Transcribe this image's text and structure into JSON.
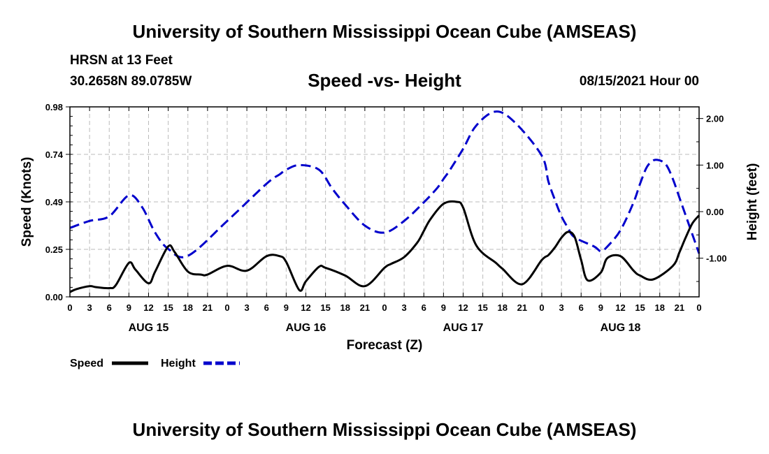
{
  "header": {
    "title": "University of Southern Mississippi Ocean Cube (AMSEAS)",
    "station": "HRSN at 13 Feet",
    "coords": "30.2658N  89.0785W",
    "chart_title": "Speed -vs- Height",
    "datetime": "08/15/2021 Hour 00"
  },
  "footer": {
    "title": "University of Southern Mississippi Ocean Cube (AMSEAS)"
  },
  "chart_data": {
    "type": "line",
    "title": "Speed -vs- Height",
    "xlabel": "Forecast (Z)",
    "ylabel": "Speed (Knots)",
    "y2label": "Height (feet)",
    "xlim": [
      0,
      96
    ],
    "ylim": [
      0,
      0.98
    ],
    "y2lim": [
      -1.83,
      2.25
    ],
    "yticks": [
      "0.00",
      "0.25",
      "0.49",
      "0.74",
      "0.98"
    ],
    "y2ticks": [
      "-1.00",
      "0.00",
      "1.00",
      "2.00"
    ],
    "xtick_labels": [
      "0",
      "3",
      "6",
      "9",
      "12",
      "15",
      "18",
      "21",
      "0",
      "3",
      "6",
      "9",
      "12",
      "15",
      "18",
      "21",
      "0",
      "3",
      "6",
      "9",
      "12",
      "15",
      "18",
      "21",
      "0",
      "3",
      "6",
      "9",
      "12",
      "15",
      "18",
      "21",
      "0"
    ],
    "day_labels": [
      {
        "label": "AUG 15",
        "hour": 12
      },
      {
        "label": "AUG 16",
        "hour": 36
      },
      {
        "label": "AUG 17",
        "hour": 60
      },
      {
        "label": "AUG 18",
        "hour": 84
      }
    ],
    "grid": true,
    "series": [
      {
        "name": "Speed",
        "axis": "left",
        "color": "#000000",
        "style": "solid",
        "x": [
          0,
          1,
          3,
          4,
          6,
          7,
          9,
          10,
          12,
          13,
          15,
          16,
          18,
          20,
          21,
          24,
          27,
          30,
          32,
          33,
          35,
          36,
          38,
          39,
          42,
          45,
          48,
          49,
          51,
          53,
          54,
          55,
          57,
          59,
          60,
          62,
          65,
          66,
          69,
          72,
          73,
          74,
          75,
          76,
          77,
          78,
          79,
          81,
          82,
          84,
          86,
          87,
          89,
          92,
          93,
          94,
          95,
          96
        ],
        "y": [
          0.025,
          0.04,
          0.055,
          0.05,
          0.045,
          0.06,
          0.175,
          0.14,
          0.07,
          0.13,
          0.26,
          0.23,
          0.13,
          0.115,
          0.115,
          0.16,
          0.135,
          0.21,
          0.21,
          0.18,
          0.035,
          0.08,
          0.155,
          0.15,
          0.11,
          0.055,
          0.15,
          0.17,
          0.205,
          0.28,
          0.34,
          0.4,
          0.48,
          0.49,
          0.46,
          0.265,
          0.175,
          0.145,
          0.065,
          0.19,
          0.215,
          0.255,
          0.305,
          0.335,
          0.31,
          0.19,
          0.085,
          0.125,
          0.2,
          0.21,
          0.135,
          0.11,
          0.09,
          0.16,
          0.23,
          0.31,
          0.38,
          0.42
        ]
      },
      {
        "name": "Height",
        "axis": "right",
        "color": "#0000cc",
        "style": "dashed",
        "x": [
          0,
          3,
          6,
          9,
          11,
          13,
          15,
          18,
          24,
          30,
          32,
          33,
          35,
          38,
          40,
          42,
          45,
          48,
          51,
          54,
          56,
          57,
          58,
          60,
          62,
          65,
          68,
          72,
          73,
          74,
          75,
          76,
          77,
          80,
          81,
          82,
          84,
          86,
          87,
          88,
          89,
          90,
          91,
          92,
          93,
          94,
          95,
          96
        ],
        "y": [
          -0.35,
          -0.2,
          -0.1,
          0.35,
          0.1,
          -0.45,
          -0.8,
          -0.95,
          -0.2,
          0.6,
          0.8,
          0.9,
          1.0,
          0.9,
          0.5,
          0.15,
          -0.3,
          -0.45,
          -0.2,
          0.2,
          0.5,
          0.7,
          0.9,
          1.35,
          1.85,
          2.15,
          1.9,
          1.2,
          0.65,
          0.25,
          -0.1,
          -0.35,
          -0.55,
          -0.75,
          -0.85,
          -0.75,
          -0.4,
          0.2,
          0.6,
          0.95,
          1.1,
          1.1,
          1.0,
          0.7,
          0.3,
          -0.1,
          -0.5,
          -0.9
        ]
      }
    ],
    "legend": [
      {
        "label": "Speed",
        "color": "#000000",
        "style": "solid"
      },
      {
        "label": "Height",
        "color": "#0000cc",
        "style": "dashed"
      }
    ]
  }
}
